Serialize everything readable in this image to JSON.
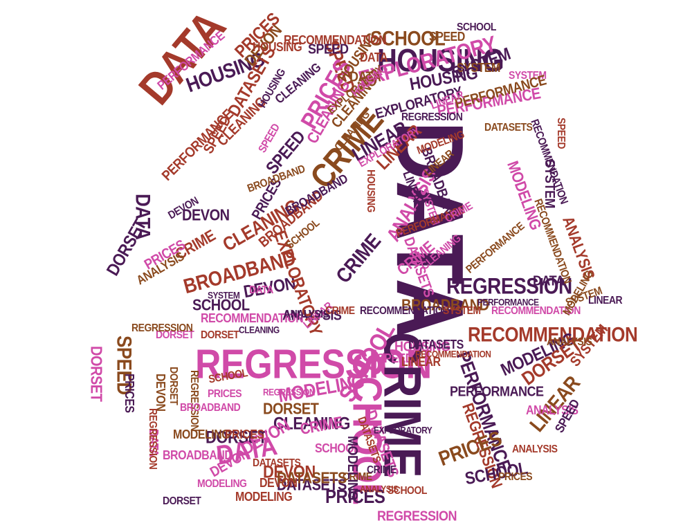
{
  "palette": {
    "dark_purple": "#4a1a55",
    "brown_red": "#a43a2b",
    "magenta": "#d04aa8",
    "rust": "#9b3b2a",
    "plum": "#7a2a6a",
    "pink": "#d44c9a",
    "olive_brown": "#8a4a1e"
  },
  "words": [
    {
      "text": "DATA",
      "color": "#4a1a55"
    },
    {
      "text": "HOUSING",
      "color": "#a43a2b"
    },
    {
      "text": "BROADBAND",
      "color": "#9b3b2a"
    },
    {
      "text": "REGRESSION",
      "color": "#d04aa8"
    },
    {
      "text": "CRIME",
      "color": "#4a1a55"
    },
    {
      "text": "SCHOOL",
      "color": "#d04aa8"
    },
    {
      "text": "DATA",
      "color": "#a43a2b"
    },
    {
      "text": "HOUSING",
      "color": "#4a1a55"
    },
    {
      "text": "EXPLORATORY",
      "color": "#d04aa8"
    },
    {
      "text": "CRIME",
      "color": "#8a4a1e"
    },
    {
      "text": "RECOMMENDATION",
      "color": "#a43a2b"
    },
    {
      "text": "PERFORMANCE",
      "color": "#4a1a55"
    },
    {
      "text": "REGRESSION",
      "color": "#4a1a55"
    },
    {
      "text": "BROADBAND",
      "color": "#a43a2b"
    },
    {
      "text": "CLEANING",
      "color": "#a43a2b"
    },
    {
      "text": "MODELING",
      "color": "#d04aa8"
    },
    {
      "text": "ANALYSIS",
      "color": "#d04aa8"
    },
    {
      "text": "SCHOOL",
      "color": "#8a4a1e"
    },
    {
      "text": "SPEED",
      "color": "#a43a2b"
    },
    {
      "text": "PRICES",
      "color": "#d04aa8"
    },
    {
      "text": "HOUSING",
      "color": "#4a1a55"
    },
    {
      "text": "LINEAR",
      "color": "#4a1a55"
    },
    {
      "text": "DEVON",
      "color": "#4a1a55"
    },
    {
      "text": "DATASETS",
      "color": "#a43a2b"
    },
    {
      "text": "PRICES",
      "color": "#4a1a55"
    },
    {
      "text": "DATA",
      "color": "#d04aa8"
    },
    {
      "text": "SCHOOL",
      "color": "#d04aa8"
    },
    {
      "text": "CLEANING",
      "color": "#4a1a55"
    },
    {
      "text": "DORSET",
      "color": "#4a1a55"
    },
    {
      "text": "CRIME",
      "color": "#d04aa8"
    },
    {
      "text": "DEVON",
      "color": "#d04aa8"
    },
    {
      "text": "SPEED",
      "color": "#8a4a1e"
    },
    {
      "text": "SYSTEM",
      "color": "#4a1a55"
    },
    {
      "text": "MODELING",
      "color": "#4a1a55"
    },
    {
      "text": "ANALYSIS",
      "color": "#4a1a55"
    },
    {
      "text": "LINEAR",
      "color": "#8a4a1e"
    },
    {
      "text": "DORSET",
      "color": "#a43a2b"
    },
    {
      "text": "EXPLORATORY",
      "color": "#a43a2b"
    },
    {
      "text": "PERFORMANCE",
      "color": "#d04aa8"
    },
    {
      "text": "CRIME",
      "color": "#4a1a55"
    },
    {
      "text": "SPEED",
      "color": "#d04aa8"
    },
    {
      "text": "DATASETS",
      "color": "#4a1a55"
    },
    {
      "text": "SCHOOL",
      "color": "#4a1a55"
    },
    {
      "text": "ANALYSIS",
      "color": "#a43a2b"
    },
    {
      "text": "BROADBAND",
      "color": "#8a4a1e"
    },
    {
      "text": "DEVON",
      "color": "#8a4a1e"
    },
    {
      "text": "CLEANING",
      "color": "#d04aa8"
    },
    {
      "text": "DATASETS",
      "color": "#d04aa8"
    },
    {
      "text": "PRICES",
      "color": "#a43a2b"
    },
    {
      "text": "REGRESSION",
      "color": "#a43a2b"
    },
    {
      "text": "RECOMMENDATION",
      "color": "#d04aa8"
    },
    {
      "text": "SYSTEM",
      "color": "#a43a2b"
    },
    {
      "text": "MODELING",
      "color": "#8a4a1e"
    },
    {
      "text": "HOUSING",
      "color": "#d04aa8"
    },
    {
      "text": "DATA",
      "color": "#4a1a55"
    },
    {
      "text": "LINEAR",
      "color": "#d04aa8"
    },
    {
      "text": "DORSET",
      "color": "#d04aa8"
    },
    {
      "text": "SPEED",
      "color": "#4a1a55"
    },
    {
      "text": "PERFORMANCE",
      "color": "#a43a2b"
    },
    {
      "text": "EXPLORATORY",
      "color": "#4a1a55"
    },
    {
      "text": "PRICES",
      "color": "#8a4a1e"
    },
    {
      "text": "DEVON",
      "color": "#a43a2b"
    },
    {
      "text": "CRIME",
      "color": "#a43a2b"
    },
    {
      "text": "SCHOOL",
      "color": "#a43a2b"
    },
    {
      "text": "ANALYSIS",
      "color": "#8a4a1e"
    },
    {
      "text": "SYSTEM",
      "color": "#d04aa8"
    },
    {
      "text": "DATASETS",
      "color": "#8a4a1e"
    },
    {
      "text": "BROADBAND",
      "color": "#4a1a55"
    },
    {
      "text": "CLEANING",
      "color": "#8a4a1e"
    },
    {
      "text": "MODELING",
      "color": "#a43a2b"
    },
    {
      "text": "HOUSING",
      "color": "#8a4a1e"
    },
    {
      "text": "RECOMMENDATION",
      "color": "#4a1a55"
    },
    {
      "text": "REGRESSION",
      "color": "#8a4a1e"
    },
    {
      "text": "DATA",
      "color": "#8a4a1e"
    },
    {
      "text": "DORSET",
      "color": "#8a4a1e"
    },
    {
      "text": "SPEED",
      "color": "#4a1a55"
    },
    {
      "text": "LINEAR",
      "color": "#a43a2b"
    },
    {
      "text": "PERFORMANCE",
      "color": "#8a4a1e"
    },
    {
      "text": "PRICES",
      "color": "#4a1a55"
    },
    {
      "text": "SYSTEM",
      "color": "#8a4a1e"
    },
    {
      "text": "EXPLORATORY",
      "color": "#8a4a1e"
    },
    {
      "text": "DEVON",
      "color": "#4a1a55"
    },
    {
      "text": "CRIME",
      "color": "#d04aa8"
    },
    {
      "text": "SCHOOL",
      "color": "#4a1a55"
    },
    {
      "text": "ANALYSIS",
      "color": "#a43a2b"
    },
    {
      "text": "DATASETS",
      "color": "#a43a2b"
    },
    {
      "text": "CLEANING",
      "color": "#4a1a55"
    },
    {
      "text": "MODELING",
      "color": "#d04aa8"
    },
    {
      "text": "HOUSING",
      "color": "#a43a2b"
    },
    {
      "text": "BROADBAND",
      "color": "#d04aa8"
    },
    {
      "text": "RECOMMENDATION",
      "color": "#a43a2b"
    },
    {
      "text": "REGRESSION",
      "color": "#d04aa8"
    },
    {
      "text": "DORSET",
      "color": "#4a1a55"
    },
    {
      "text": "LINEAR",
      "color": "#4a1a55"
    },
    {
      "text": "SPEED",
      "color": "#a43a2b"
    },
    {
      "text": "PERFORMANCE",
      "color": "#4a1a55"
    },
    {
      "text": "PRICES",
      "color": "#d04aa8"
    },
    {
      "text": "SYSTEM",
      "color": "#4a1a55"
    },
    {
      "text": "DATA",
      "color": "#d04aa8"
    },
    {
      "text": "DEVON",
      "color": "#d04aa8"
    },
    {
      "text": "CRIME",
      "color": "#8a4a1e"
    },
    {
      "text": "SCHOOL",
      "color": "#d04aa8"
    },
    {
      "text": "ANALYSIS",
      "color": "#4a1a55"
    },
    {
      "text": "DATASETS",
      "color": "#4a1a55"
    },
    {
      "text": "EXPLORATORY",
      "color": "#d04aa8"
    },
    {
      "text": "CLEANING",
      "color": "#a43a2b"
    },
    {
      "text": "MODELING",
      "color": "#4a1a55"
    },
    {
      "text": "HOUSING",
      "color": "#4a1a55"
    },
    {
      "text": "BROADBAND",
      "color": "#a43a2b"
    },
    {
      "text": "RECOMMENDATION",
      "color": "#d04aa8"
    },
    {
      "text": "REGRESSION",
      "color": "#4a1a55"
    },
    {
      "text": "DORSET",
      "color": "#a43a2b"
    },
    {
      "text": "LINEAR",
      "color": "#d04aa8"
    },
    {
      "text": "SPEED",
      "color": "#8a4a1e"
    },
    {
      "text": "PERFORMANCE",
      "color": "#d04aa8"
    },
    {
      "text": "PRICES",
      "color": "#a43a2b"
    },
    {
      "text": "SYSTEM",
      "color": "#d04aa8"
    },
    {
      "text": "DATA",
      "color": "#a43a2b"
    },
    {
      "text": "DEVON",
      "color": "#8a4a1e"
    },
    {
      "text": "CRIME",
      "color": "#4a1a55"
    },
    {
      "text": "SCHOOL",
      "color": "#8a4a1e"
    },
    {
      "text": "ANALYSIS",
      "color": "#d04aa8"
    },
    {
      "text": "DATASETS",
      "color": "#d04aa8"
    },
    {
      "text": "CLEANING",
      "color": "#d04aa8"
    },
    {
      "text": "MODELING",
      "color": "#a43a2b"
    },
    {
      "text": "HOUSING",
      "color": "#d04aa8"
    },
    {
      "text": "BROADBAND",
      "color": "#4a1a55"
    },
    {
      "text": "RECOMMENDATION",
      "color": "#4a1a55"
    },
    {
      "text": "REGRESSION",
      "color": "#a43a2b"
    },
    {
      "text": "DORSET",
      "color": "#d04aa8"
    },
    {
      "text": "LINEAR",
      "color": "#a43a2b"
    },
    {
      "text": "SPEED",
      "color": "#d04aa8"
    },
    {
      "text": "PERFORMANCE",
      "color": "#a43a2b"
    },
    {
      "text": "PRICES",
      "color": "#4a1a55"
    },
    {
      "text": "SYSTEM",
      "color": "#a43a2b"
    },
    {
      "text": "DATA",
      "color": "#4a1a55"
    },
    {
      "text": "DEVON",
      "color": "#a43a2b"
    },
    {
      "text": "CRIME",
      "color": "#a43a2b"
    },
    {
      "text": "SCHOOL",
      "color": "#4a1a55"
    },
    {
      "text": "ANALYSIS",
      "color": "#8a4a1e"
    },
    {
      "text": "DATASETS",
      "color": "#8a4a1e"
    },
    {
      "text": "CLEANING",
      "color": "#8a4a1e"
    },
    {
      "text": "MODELING",
      "color": "#8a4a1e"
    },
    {
      "text": "HOUSING",
      "color": "#a43a2b"
    },
    {
      "text": "BROADBAND",
      "color": "#8a4a1e"
    },
    {
      "text": "RECOMMENDATION",
      "color": "#8a4a1e"
    },
    {
      "text": "REGRESSION",
      "color": "#8a4a1e"
    },
    {
      "text": "DORSET",
      "color": "#8a4a1e"
    },
    {
      "text": "LINEAR",
      "color": "#8a4a1e"
    },
    {
      "text": "SPEED",
      "color": "#4a1a55"
    },
    {
      "text": "PERFORMANCE",
      "color": "#8a4a1e"
    },
    {
      "text": "PRICES",
      "color": "#8a4a1e"
    },
    {
      "text": "SYSTEM",
      "color": "#8a4a1e"
    },
    {
      "text": "DATA",
      "color": "#d04aa8"
    },
    {
      "text": "DEVON",
      "color": "#4a1a55"
    },
    {
      "text": "CRIME",
      "color": "#d04aa8"
    },
    {
      "text": "SCHOOL",
      "color": "#a43a2b"
    },
    {
      "text": "ANALYSIS",
      "color": "#a43a2b"
    },
    {
      "text": "DATASETS",
      "color": "#a43a2b"
    },
    {
      "text": "EXPLORATORY",
      "color": "#4a1a55"
    },
    {
      "text": "CLEANING",
      "color": "#4a1a55"
    },
    {
      "text": "MODELING",
      "color": "#d04aa8"
    },
    {
      "text": "HOUSING",
      "color": "#4a1a55"
    },
    {
      "text": "BROADBAND",
      "color": "#d04aa8"
    },
    {
      "text": "RECOMMENDATION",
      "color": "#a43a2b"
    },
    {
      "text": "REGRESSION",
      "color": "#d04aa8"
    },
    {
      "text": "DORSET",
      "color": "#4a1a55"
    },
    {
      "text": "LINEAR",
      "color": "#4a1a55"
    },
    {
      "text": "SPEED",
      "color": "#a43a2b"
    },
    {
      "text": "PERFORMANCE",
      "color": "#4a1a55"
    },
    {
      "text": "PRICES",
      "color": "#d04aa8"
    },
    {
      "text": "SYSTEM",
      "color": "#4a1a55"
    }
  ]
}
